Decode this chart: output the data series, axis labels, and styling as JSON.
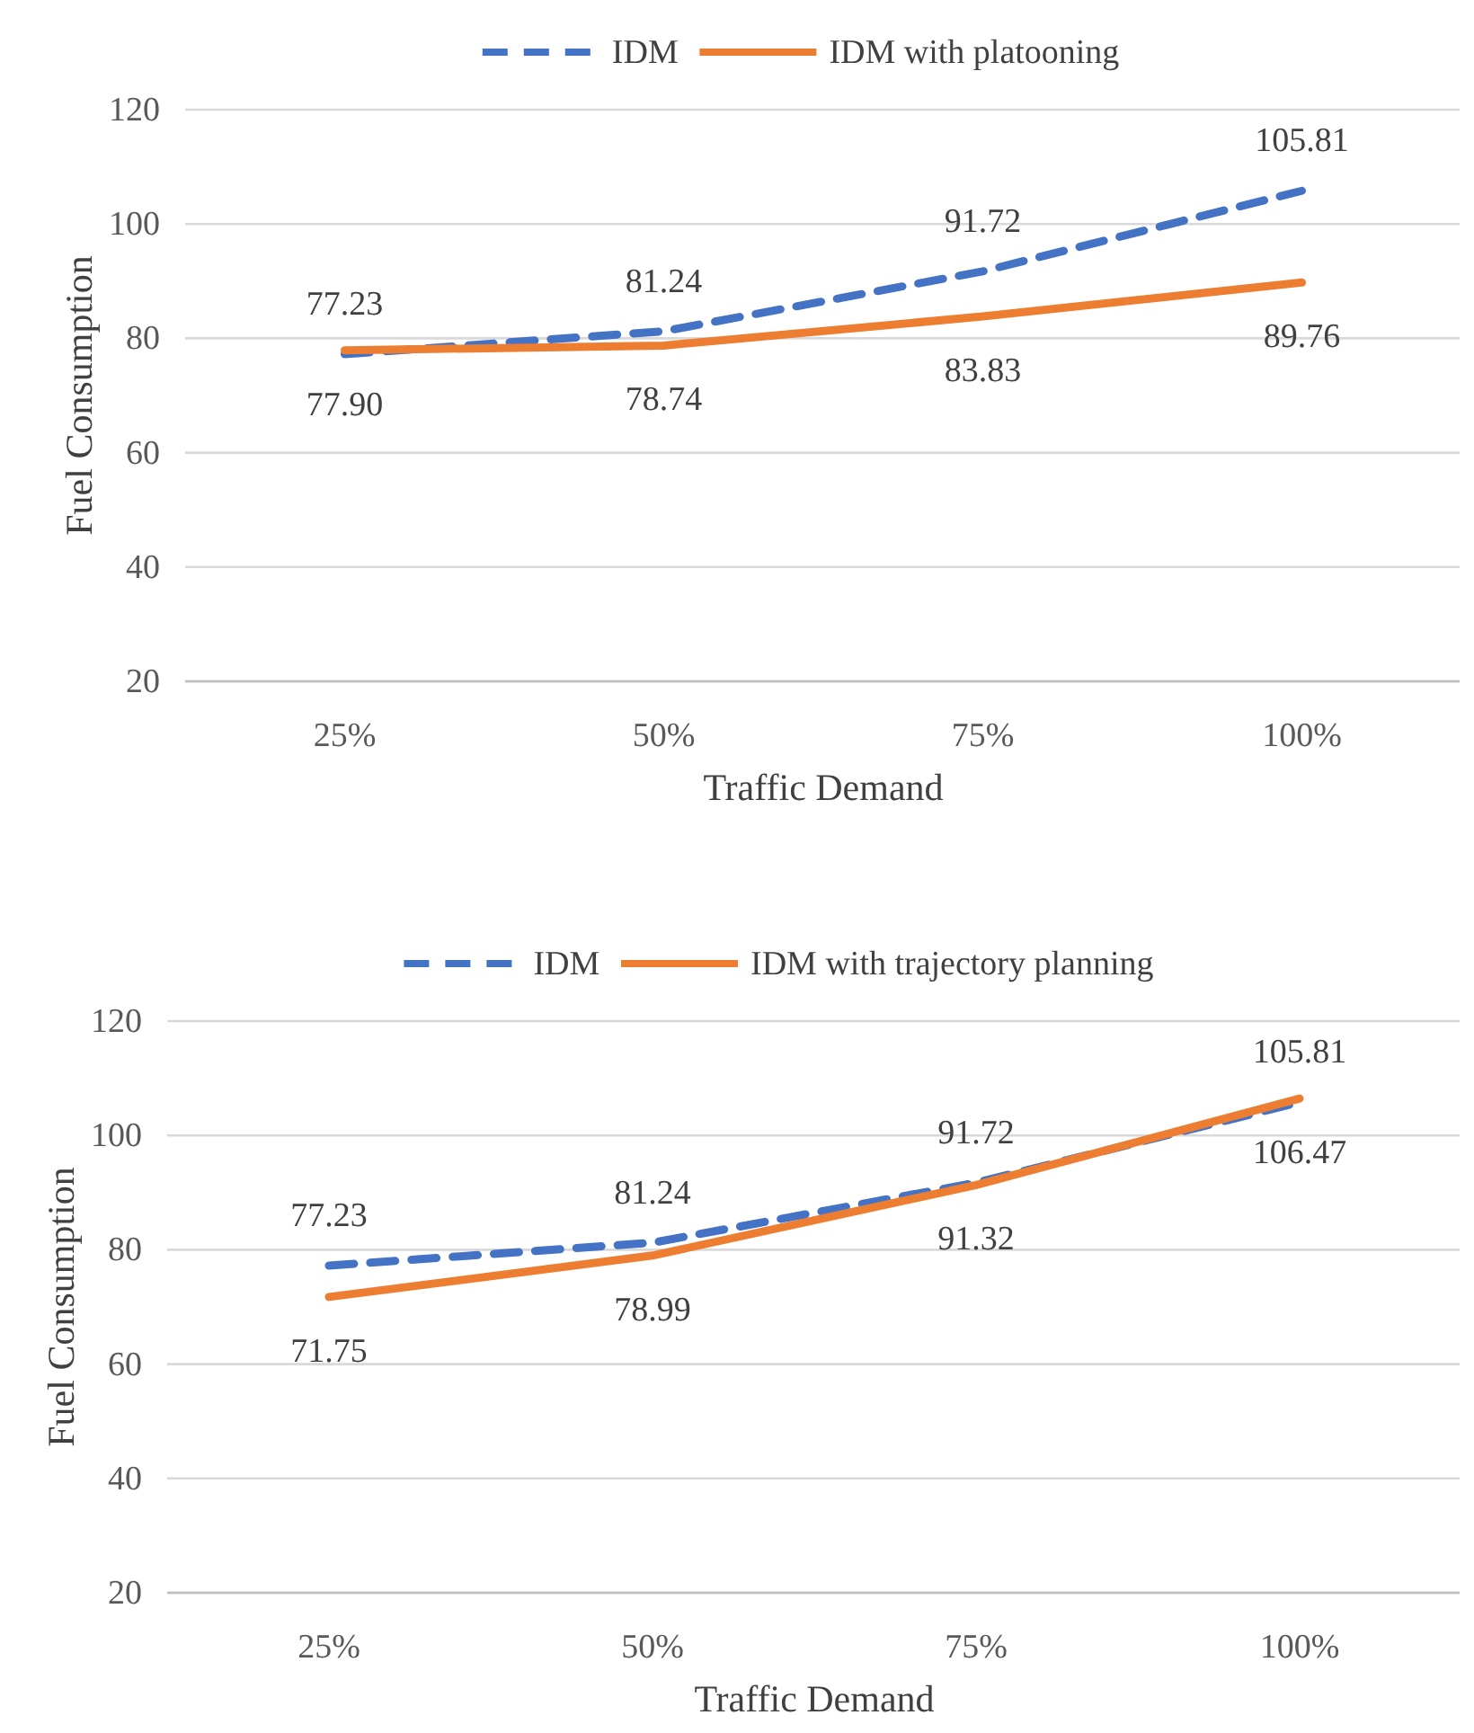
{
  "chart_data": [
    {
      "type": "line",
      "xlabel": "Traffic Demand",
      "ylabel": "Fuel Consumption",
      "categories": [
        "25%",
        "50%",
        "75%",
        "100%"
      ],
      "series": [
        {
          "name": "IDM",
          "color": "#4472c4",
          "line_style": "dashed",
          "values": [
            77.23,
            81.24,
            91.72,
            105.81
          ],
          "value_labels": [
            "77.23",
            "81.24",
            "91.72",
            "105.81"
          ]
        },
        {
          "name": "IDM with platooning",
          "color": "#ed7d31",
          "line_style": "solid",
          "values": [
            77.9,
            78.74,
            83.83,
            89.76
          ],
          "value_labels": [
            "77.90",
            "78.74",
            "83.83",
            "89.76"
          ]
        }
      ],
      "ylim": [
        20,
        120
      ],
      "yticks": [
        20,
        40,
        60,
        80,
        100,
        120
      ],
      "grid": "y",
      "legend": "top"
    },
    {
      "type": "line",
      "xlabel": "Traffic Demand",
      "ylabel": "Fuel Consumption",
      "categories": [
        "25%",
        "50%",
        "75%",
        "100%"
      ],
      "series": [
        {
          "name": "IDM",
          "color": "#4472c4",
          "line_style": "dashed",
          "values": [
            77.23,
            81.24,
            91.72,
            105.81
          ],
          "value_labels": [
            "77.23",
            "81.24",
            "91.72",
            "105.81"
          ]
        },
        {
          "name": "IDM with trajectory planning",
          "color": "#ed7d31",
          "line_style": "solid",
          "values": [
            71.75,
            78.99,
            91.32,
            106.47
          ],
          "value_labels": [
            "71.75",
            "78.99",
            "91.32",
            "106.47"
          ]
        }
      ],
      "ylim": [
        20,
        120
      ],
      "yticks": [
        20,
        40,
        60,
        80,
        100,
        120
      ],
      "grid": "y",
      "legend": "top"
    }
  ]
}
